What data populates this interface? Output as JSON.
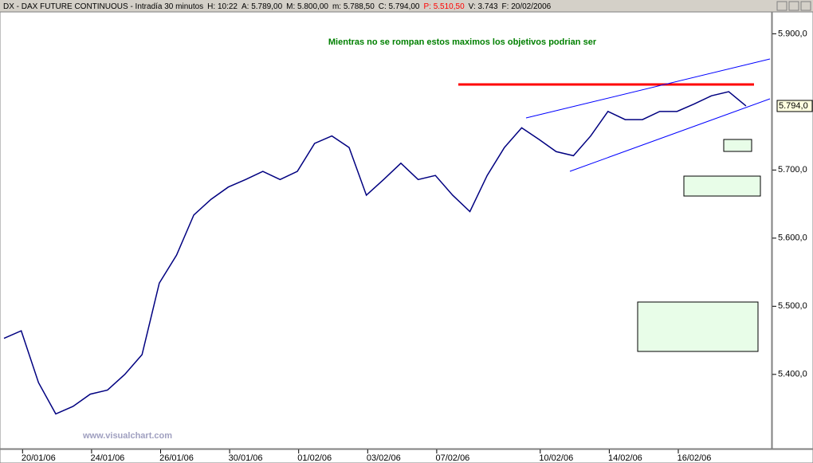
{
  "header": {
    "symbol": "DX - DAX FUTURE CONTINUOUS - Intradía 30 minutos",
    "fields": [
      "H: 10:22",
      "A: 5.789,00",
      "M: 5.800,00",
      "m: 5.788,50",
      "C: 5.794,00",
      "P: 5.510,50",
      "V: 3.743",
      "F: 20/02/2006"
    ]
  },
  "chart_data": {
    "type": "line",
    "annotation": "Mientras no se rompan estos maximos los objetivos podrian ser",
    "watermark": "www.visualchart.com",
    "categories": [
      null,
      null,
      "20/01/06",
      null,
      null,
      null,
      "24/01/06",
      null,
      null,
      null,
      "26/01/06",
      null,
      null,
      null,
      "30/01/06",
      null,
      null,
      null,
      "01/02/06",
      null,
      null,
      null,
      "03/02/06",
      null,
      null,
      null,
      "07/02/06",
      null,
      null,
      null,
      null,
      null,
      "10/02/06",
      null,
      null,
      null,
      "14/02/06",
      null,
      null,
      null,
      "16/02/06",
      null,
      null,
      null
    ],
    "series": [
      {
        "color": "#000080",
        "values": [
          5453,
          5464,
          5388,
          5342,
          5353,
          5371,
          5377,
          5400,
          5429,
          5534,
          5575,
          5634,
          5657,
          5675,
          5686,
          5698,
          5686,
          5698,
          5739,
          5750,
          5733,
          5663,
          5686,
          5710,
          5686,
          5692,
          5663,
          5639,
          5692,
          5733,
          5762,
          5745,
          5727,
          5721,
          5750,
          5786,
          5774,
          5774,
          5786,
          5786,
          5797,
          5809,
          5815,
          5794
        ]
      }
    ],
    "last_price": {
      "value": 5794,
      "label": "5.794,0"
    },
    "ylim": [
      5291,
      5932
    ],
    "yticks": [
      {
        "value": 5400,
        "label": "5.400,0"
      },
      {
        "value": 5500,
        "label": "5.500,0"
      },
      {
        "value": 5600,
        "label": "5.600,0"
      },
      {
        "value": 5700,
        "label": "5.700,0"
      },
      {
        "value": 5900,
        "label": "5.900,0"
      }
    ]
  }
}
